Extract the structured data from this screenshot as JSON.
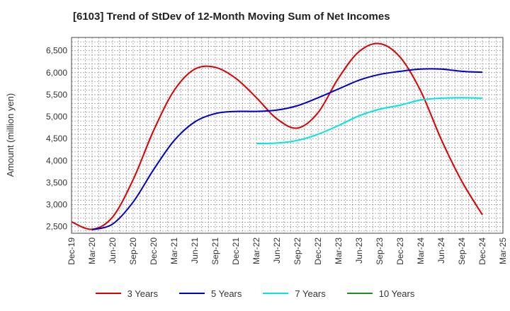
{
  "chart_data": {
    "type": "line",
    "title": "[6103]  Trend of StDev of 12-Month Moving Sum of Net Incomes",
    "xlabel": "",
    "ylabel": "Amount (million yen)",
    "categories": [
      "Dec-19",
      "Mar-20",
      "Jun-20",
      "Sep-20",
      "Dec-20",
      "Mar-21",
      "Jun-21",
      "Sep-21",
      "Dec-21",
      "Mar-22",
      "Jun-22",
      "Sep-22",
      "Dec-22",
      "Mar-23",
      "Jun-23",
      "Sep-23",
      "Dec-23",
      "Mar-24",
      "Jun-24",
      "Sep-24",
      "Dec-24",
      "Mar-25"
    ],
    "ylim": [
      2350,
      6800
    ],
    "yticks": [
      2500,
      3000,
      3500,
      4000,
      4500,
      5000,
      5500,
      6000,
      6500
    ],
    "ytick_labels": [
      "2,500",
      "3,000",
      "3,500",
      "4,000",
      "4,500",
      "5,000",
      "5,500",
      "6,000",
      "6,500"
    ],
    "grid": true,
    "legend_position": "bottom",
    "series": [
      {
        "name": "3 Years",
        "color": "#dd0000",
        "values": [
          2610,
          2440,
          2720,
          3570,
          4690,
          5600,
          6080,
          6120,
          5870,
          5430,
          4950,
          4740,
          5090,
          5880,
          6480,
          6660,
          6350,
          5580,
          4480,
          3530,
          2770,
          null
        ]
      },
      {
        "name": "5 Years",
        "color": "#0000cc",
        "values": [
          null,
          2430,
          2560,
          3060,
          3800,
          4460,
          4880,
          5070,
          5120,
          5120,
          5150,
          5250,
          5430,
          5630,
          5830,
          5960,
          6030,
          6080,
          6080,
          6030,
          6010,
          null
        ]
      },
      {
        "name": "7 Years",
        "color": "#00e5e5",
        "values": [
          null,
          null,
          null,
          null,
          null,
          null,
          null,
          null,
          null,
          4390,
          4400,
          4460,
          4600,
          4800,
          5020,
          5170,
          5260,
          5380,
          5420,
          5430,
          5420,
          null
        ]
      },
      {
        "name": "10 Years",
        "color": "#228b22",
        "values": [
          null,
          null,
          null,
          null,
          null,
          null,
          null,
          null,
          null,
          null,
          null,
          null,
          null,
          null,
          null,
          null,
          null,
          null,
          null,
          null,
          null,
          null
        ]
      }
    ]
  }
}
